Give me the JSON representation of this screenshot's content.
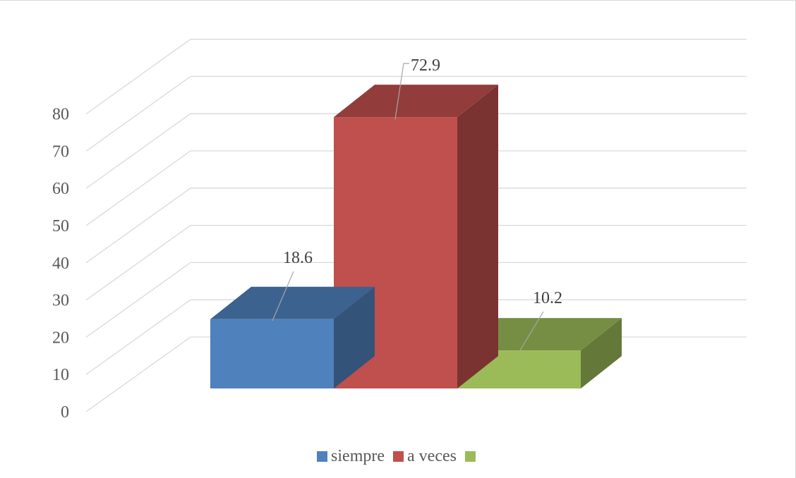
{
  "chart_data": {
    "type": "bar",
    "style": "3d-column",
    "categories": [
      "siempre",
      "a veces",
      ""
    ],
    "values": [
      18.6,
      72.9,
      10.2
    ],
    "data_labels": [
      "18.6",
      "72.9",
      "10.2"
    ],
    "colors": [
      "#4F81BD",
      "#C0504D",
      "#9BBB59"
    ],
    "title": "",
    "xlabel": "",
    "ylabel": "",
    "ylim": [
      0,
      80
    ],
    "yticks": [
      "0",
      "10",
      "20",
      "30",
      "40",
      "50",
      "60",
      "70",
      "80"
    ],
    "grid": true,
    "legend_position": "bottom"
  }
}
